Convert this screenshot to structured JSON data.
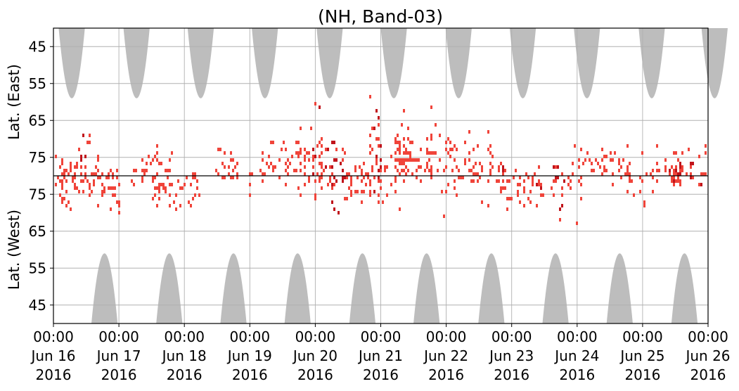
{
  "chart_data": {
    "type": "heatmap",
    "title": "(NH, Band-03)",
    "ylabel_top": "Lat. (East)",
    "ylabel_bottom": "Lat. (West)",
    "xlim": [
      "2016-06-16 00:00",
      "2016-06-26 00:00"
    ],
    "x_ticks": [
      {
        "time": "00:00",
        "date": "Jun 16",
        "year": "2016"
      },
      {
        "time": "00:00",
        "date": "Jun 17",
        "year": "2016"
      },
      {
        "time": "00:00",
        "date": "Jun 18",
        "year": "2016"
      },
      {
        "time": "00:00",
        "date": "Jun 19",
        "year": "2016"
      },
      {
        "time": "00:00",
        "date": "Jun 20",
        "year": "2016"
      },
      {
        "time": "00:00",
        "date": "Jun 21",
        "year": "2016"
      },
      {
        "time": "00:00",
        "date": "Jun 22",
        "year": "2016"
      },
      {
        "time": "00:00",
        "date": "Jun 23",
        "year": "2016"
      },
      {
        "time": "00:00",
        "date": "Jun 24",
        "year": "2016"
      },
      {
        "time": "00:00",
        "date": "Jun 25",
        "year": "2016"
      },
      {
        "time": "00:00",
        "date": "Jun 26",
        "year": "2016"
      }
    ],
    "east_ticks": [
      "45",
      "55",
      "65",
      "75"
    ],
    "west_ticks": [
      "75",
      "65",
      "55",
      "45"
    ],
    "east_tick_values": [
      45,
      55,
      65,
      75
    ],
    "west_tick_values": [
      75,
      65,
      55,
      45
    ],
    "lat_range": [
      40,
      80
    ],
    "grid": true,
    "colors": {
      "coverage_gap": "#bdbdbd",
      "observation_light": "#f0443a",
      "observation_dark": "#c0141b",
      "divider": "#000000"
    },
    "coverage_gaps": {
      "east_centers_day": [
        0.28,
        1.27,
        2.25,
        3.23,
        4.22,
        5.2,
        6.19,
        7.17,
        8.15,
        9.14,
        10.1
      ],
      "west_centers_day": [
        0.78,
        1.77,
        2.75,
        3.73,
        4.72,
        5.7,
        6.69,
        7.67,
        8.65,
        9.64
      ],
      "half_width_day": 0.2,
      "apex_lat": 59
    },
    "observations": [
      {
        "day": 0.05,
        "lat_dev": 2,
        "dev_sd": 3,
        "width_day": 0.1,
        "density": 0.7,
        "dark": false
      },
      {
        "day": 0.15,
        "lat_dev": -1,
        "dev_sd": 4,
        "width_day": 0.12,
        "density": 0.75,
        "dark": false
      },
      {
        "day": 0.25,
        "lat_dev": 1,
        "dev_sd": 3,
        "width_day": 0.1,
        "density": 0.7,
        "dark": false
      },
      {
        "day": 0.45,
        "lat_dev": 8,
        "dev_sd": 2.5,
        "width_day": 0.1,
        "density": 0.85,
        "dark": true
      },
      {
        "day": 0.5,
        "lat_dev": 1,
        "dev_sd": 3,
        "width_day": 0.2,
        "density": 0.7,
        "dark": false
      },
      {
        "day": 0.75,
        "lat_dev": -2,
        "dev_sd": 3,
        "width_day": 0.25,
        "density": 0.7,
        "dark": false
      },
      {
        "day": 0.9,
        "lat_dev": -6,
        "dev_sd": 3,
        "width_day": 0.1,
        "density": 0.6,
        "dark": false
      },
      {
        "day": 1.3,
        "lat_dev": 0,
        "dev_sd": 2,
        "width_day": 0.12,
        "density": 0.8,
        "dark": false
      },
      {
        "day": 1.6,
        "lat_dev": 3,
        "dev_sd": 3,
        "width_day": 0.2,
        "density": 0.75,
        "dark": false
      },
      {
        "day": 1.8,
        "lat_dev": -3,
        "dev_sd": 3,
        "width_day": 0.3,
        "density": 0.7,
        "dark": false
      },
      {
        "day": 2.15,
        "lat_dev": -5,
        "dev_sd": 5,
        "width_day": 0.06,
        "density": 0.6,
        "dark": false
      },
      {
        "day": 2.6,
        "lat_dev": 3,
        "dev_sd": 3,
        "width_day": 0.2,
        "density": 0.7,
        "dark": false
      },
      {
        "day": 3.0,
        "lat_dev": 0,
        "dev_sd": 2,
        "width_day": 0.06,
        "density": 0.6,
        "dark": false
      },
      {
        "day": 3.5,
        "lat_dev": 4,
        "dev_sd": 3,
        "width_day": 0.35,
        "density": 0.75,
        "dark": false
      },
      {
        "day": 3.9,
        "lat_dev": 5,
        "dev_sd": 4,
        "width_day": 0.2,
        "density": 0.8,
        "dark": false
      },
      {
        "day": 4.2,
        "lat_dev": 3,
        "dev_sd": 5,
        "width_day": 0.25,
        "density": 0.8,
        "dark": true
      },
      {
        "day": 4.6,
        "lat_dev": -2,
        "dev_sd": 4,
        "width_day": 0.15,
        "density": 0.7,
        "dark": false
      },
      {
        "day": 4.9,
        "lat_dev": 6,
        "dev_sd": 6,
        "width_day": 0.1,
        "density": 0.85,
        "dark": true
      },
      {
        "day": 5.0,
        "lat_dev": -1,
        "dev_sd": 3,
        "width_day": 0.3,
        "density": 0.75,
        "dark": false
      },
      {
        "day": 5.3,
        "lat_dev": 7,
        "dev_sd": 6,
        "width_day": 0.1,
        "density": 0.65,
        "dark": false
      },
      {
        "day": 5.5,
        "lat_dev": 5,
        "dev_sd": 4,
        "width_day": 0.3,
        "density": 0.75,
        "dark": false
      },
      {
        "day": 5.9,
        "lat_dev": 4,
        "dev_sd": 5,
        "width_day": 0.2,
        "density": 0.75,
        "dark": false
      },
      {
        "day": 6.4,
        "lat_dev": 3,
        "dev_sd": 4,
        "width_day": 0.3,
        "density": 0.75,
        "dark": false
      },
      {
        "day": 6.85,
        "lat_dev": 1,
        "dev_sd": 3,
        "width_day": 0.1,
        "density": 0.85,
        "dark": true
      },
      {
        "day": 7.1,
        "lat_dev": -2,
        "dev_sd": 3,
        "width_day": 0.3,
        "density": 0.75,
        "dark": false
      },
      {
        "day": 7.4,
        "lat_dev": -1,
        "dev_sd": 2,
        "width_day": 0.1,
        "density": 0.7,
        "dark": true
      },
      {
        "day": 7.7,
        "lat_dev": -3,
        "dev_sd": 4,
        "width_day": 0.1,
        "density": 0.8,
        "dark": true
      },
      {
        "day": 7.95,
        "lat_dev": 0,
        "dev_sd": 3,
        "width_day": 0.12,
        "density": 0.7,
        "dark": false
      },
      {
        "day": 8.2,
        "lat_dev": 4,
        "dev_sd": 3,
        "width_day": 0.2,
        "density": 0.7,
        "dark": false
      },
      {
        "day": 8.6,
        "lat_dev": 3,
        "dev_sd": 3,
        "width_day": 0.2,
        "density": 0.75,
        "dark": false
      },
      {
        "day": 8.9,
        "lat_dev": -1,
        "dev_sd": 3,
        "width_day": 0.15,
        "density": 0.7,
        "dark": false
      },
      {
        "day": 9.3,
        "lat_dev": 2,
        "dev_sd": 3,
        "width_day": 0.2,
        "density": 0.75,
        "dark": false
      },
      {
        "day": 9.7,
        "lat_dev": 2,
        "dev_sd": 3,
        "width_day": 0.3,
        "density": 0.8,
        "dark": true
      },
      {
        "day": 9.97,
        "lat_dev": 8,
        "dev_sd": 4,
        "width_day": 0.03,
        "density": 0.8,
        "dark": false
      }
    ]
  }
}
